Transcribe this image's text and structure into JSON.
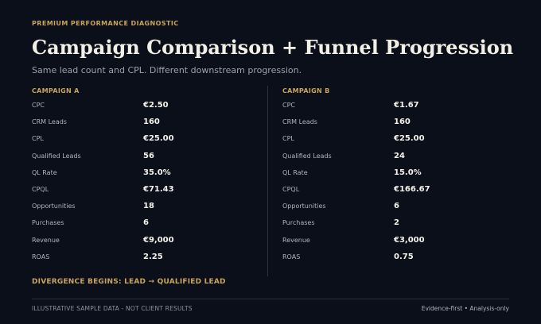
{
  "header": {
    "eyebrow": "PREMIUM PERFORMANCE DIAGNOSTIC",
    "title": "Campaign Comparison + Funnel Progression",
    "subtitle": "Same lead count and CPL. Different downstream progression."
  },
  "campaign_a": {
    "heading": "CAMPAIGN A",
    "rows": [
      {
        "label": "CPC",
        "value": "€2.50"
      },
      {
        "label": "CRM Leads",
        "value": "160"
      },
      {
        "label": "CPL",
        "value": "€25.00"
      },
      {
        "label": "Qualified Leads",
        "value": "56"
      },
      {
        "label": "QL Rate",
        "value": "35.0%"
      },
      {
        "label": "CPQL",
        "value": "€71.43"
      },
      {
        "label": "Opportunities",
        "value": "18"
      },
      {
        "label": "Purchases",
        "value": "6"
      },
      {
        "label": "Revenue",
        "value": "€9,000"
      },
      {
        "label": "ROAS",
        "value": "2.25"
      }
    ]
  },
  "campaign_b": {
    "heading": "CAMPAIGN B",
    "rows": [
      {
        "label": "CPC",
        "value": "€1.67"
      },
      {
        "label": "CRM Leads",
        "value": "160"
      },
      {
        "label": "CPL",
        "value": "€25.00"
      },
      {
        "label": "Qualified Leads",
        "value": "24"
      },
      {
        "label": "QL Rate",
        "value": "15.0%"
      },
      {
        "label": "CPQL",
        "value": "€166.67"
      },
      {
        "label": "Opportunities",
        "value": "6"
      },
      {
        "label": "Purchases",
        "value": "2"
      },
      {
        "label": "Revenue",
        "value": "€3,000"
      },
      {
        "label": "ROAS",
        "value": "0.75"
      }
    ]
  },
  "divergence": "DIVERGENCE BEGINS:  LEAD → QUALIFIED LEAD",
  "footer": {
    "left": "ILLUSTRATIVE SAMPLE DATA - NOT CLIENT RESULTS",
    "right": "Evidence-first • Analysis-only"
  },
  "colors": {
    "background": "#0b0f19",
    "accent": "#c9a45c",
    "text": "#f4f2ec",
    "muted": "#aeb4be"
  }
}
